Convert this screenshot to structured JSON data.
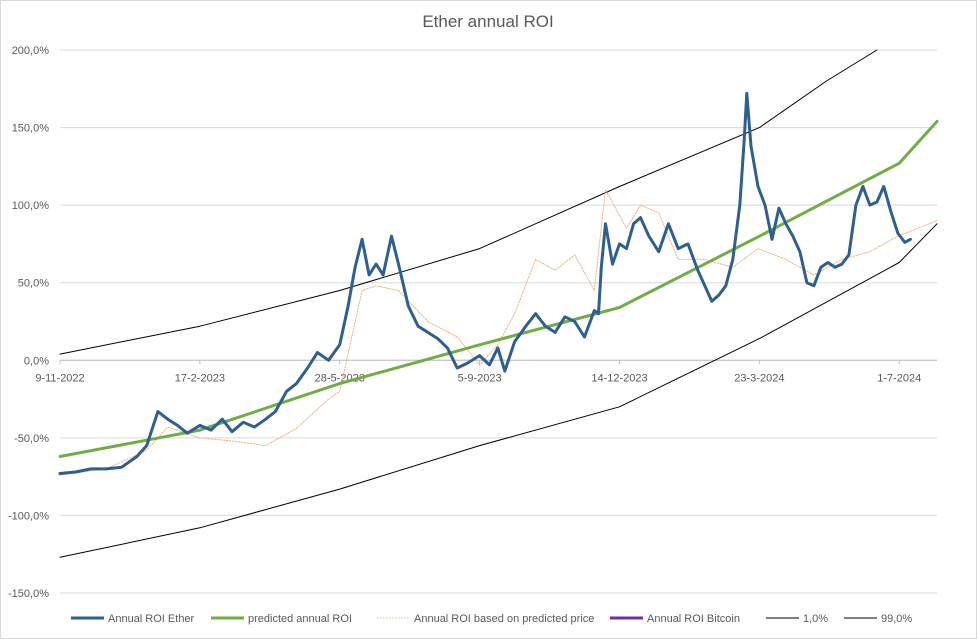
{
  "chart_data": {
    "type": "line",
    "title": "Ether annual ROI",
    "xlabel": "",
    "ylabel": "",
    "ylim": [
      -150,
      200
    ],
    "yticks": [
      "200,0%",
      "150,0%",
      "100,0%",
      "50,0%",
      "0,0%",
      "-50,0%",
      "-100,0%",
      "-150,0%"
    ],
    "ytick_values": [
      200,
      150,
      100,
      50,
      0,
      -50,
      -100,
      -150
    ],
    "x_range": [
      "2022-11-09",
      "2024-07-28"
    ],
    "xticks": [
      {
        "label": "9-11-2022",
        "date": "2022-11-09"
      },
      {
        "label": "17-2-2023",
        "date": "2023-02-17"
      },
      {
        "label": "28-5-2023",
        "date": "2023-05-28"
      },
      {
        "label": "5-9-2023",
        "date": "2023-09-05"
      },
      {
        "label": "14-12-2023",
        "date": "2023-12-14"
      },
      {
        "label": "23-3-2024",
        "date": "2024-03-23"
      },
      {
        "label": "1-7-2024",
        "date": "2024-07-01"
      }
    ],
    "grid": true,
    "legend_position": "bottom",
    "series": [
      {
        "name": "Annual ROI Ether",
        "color": "#2e5f8e",
        "points": [
          [
            "2022-11-09",
            -73
          ],
          [
            "2022-11-20",
            -72
          ],
          [
            "2022-12-01",
            -70
          ],
          [
            "2022-12-12",
            -70
          ],
          [
            "2022-12-23",
            -69
          ],
          [
            "2023-01-03",
            -62
          ],
          [
            "2023-01-10",
            -55
          ],
          [
            "2023-01-18",
            -33
          ],
          [
            "2023-01-25",
            -38
          ],
          [
            "2023-02-01",
            -42
          ],
          [
            "2023-02-08",
            -47
          ],
          [
            "2023-02-17",
            -42
          ],
          [
            "2023-02-25",
            -45
          ],
          [
            "2023-03-05",
            -38
          ],
          [
            "2023-03-12",
            -46
          ],
          [
            "2023-03-20",
            -40
          ],
          [
            "2023-03-28",
            -43
          ],
          [
            "2023-04-05",
            -38
          ],
          [
            "2023-04-12",
            -33
          ],
          [
            "2023-04-20",
            -20
          ],
          [
            "2023-04-27",
            -15
          ],
          [
            "2023-05-05",
            -5
          ],
          [
            "2023-05-12",
            5
          ],
          [
            "2023-05-20",
            0
          ],
          [
            "2023-05-28",
            10
          ],
          [
            "2023-06-03",
            35
          ],
          [
            "2023-06-08",
            60
          ],
          [
            "2023-06-13",
            78
          ],
          [
            "2023-06-18",
            55
          ],
          [
            "2023-06-23",
            62
          ],
          [
            "2023-06-28",
            55
          ],
          [
            "2023-07-04",
            80
          ],
          [
            "2023-07-09",
            62
          ],
          [
            "2023-07-16",
            35
          ],
          [
            "2023-07-23",
            22
          ],
          [
            "2023-07-30",
            18
          ],
          [
            "2023-08-06",
            14
          ],
          [
            "2023-08-13",
            8
          ],
          [
            "2023-08-20",
            -5
          ],
          [
            "2023-08-27",
            -2
          ],
          [
            "2023-09-05",
            3
          ],
          [
            "2023-09-12",
            -3
          ],
          [
            "2023-09-18",
            8
          ],
          [
            "2023-09-23",
            -7
          ],
          [
            "2023-09-30",
            12
          ],
          [
            "2023-10-08",
            22
          ],
          [
            "2023-10-15",
            30
          ],
          [
            "2023-10-22",
            22
          ],
          [
            "2023-10-29",
            18
          ],
          [
            "2023-11-05",
            28
          ],
          [
            "2023-11-12",
            25
          ],
          [
            "2023-11-19",
            15
          ],
          [
            "2023-11-26",
            32
          ],
          [
            "2023-11-29",
            30
          ],
          [
            "2023-12-01",
            60
          ],
          [
            "2023-12-04",
            88
          ],
          [
            "2023-12-09",
            62
          ],
          [
            "2023-12-14",
            75
          ],
          [
            "2023-12-19",
            72
          ],
          [
            "2023-12-24",
            88
          ],
          [
            "2023-12-29",
            92
          ],
          [
            "2024-01-04",
            80
          ],
          [
            "2024-01-11",
            70
          ],
          [
            "2024-01-18",
            88
          ],
          [
            "2024-01-25",
            72
          ],
          [
            "2024-02-01",
            75
          ],
          [
            "2024-02-08",
            58
          ],
          [
            "2024-02-13",
            48
          ],
          [
            "2024-02-18",
            38
          ],
          [
            "2024-02-23",
            42
          ],
          [
            "2024-02-28",
            48
          ],
          [
            "2024-03-04",
            65
          ],
          [
            "2024-03-09",
            100
          ],
          [
            "2024-03-12",
            140
          ],
          [
            "2024-03-14",
            172
          ],
          [
            "2024-03-17",
            138
          ],
          [
            "2024-03-22",
            112
          ],
          [
            "2024-03-27",
            100
          ],
          [
            "2024-04-01",
            78
          ],
          [
            "2024-04-06",
            98
          ],
          [
            "2024-04-11",
            88
          ],
          [
            "2024-04-16",
            80
          ],
          [
            "2024-04-21",
            70
          ],
          [
            "2024-04-26",
            50
          ],
          [
            "2024-05-01",
            48
          ],
          [
            "2024-05-06",
            60
          ],
          [
            "2024-05-11",
            63
          ],
          [
            "2024-05-16",
            60
          ],
          [
            "2024-05-21",
            62
          ],
          [
            "2024-05-26",
            68
          ],
          [
            "2024-05-31",
            100
          ],
          [
            "2024-06-05",
            112
          ],
          [
            "2024-06-10",
            100
          ],
          [
            "2024-06-15",
            102
          ],
          [
            "2024-06-20",
            112
          ],
          [
            "2024-06-25",
            96
          ],
          [
            "2024-06-30",
            82
          ],
          [
            "2024-07-05",
            76
          ],
          [
            "2024-07-09",
            78
          ]
        ]
      },
      {
        "name": "predicted  annual ROI",
        "color": "#70ad47",
        "points": [
          [
            "2022-11-09",
            -62
          ],
          [
            "2023-02-17",
            -45
          ],
          [
            "2023-05-28",
            -15
          ],
          [
            "2023-09-05",
            10
          ],
          [
            "2023-12-14",
            34
          ],
          [
            "2024-03-23",
            80
          ],
          [
            "2024-07-01",
            127
          ],
          [
            "2024-07-28",
            154
          ]
        ]
      },
      {
        "name": "Annual ROI based on predicted price",
        "color": "#f4b183",
        "points": [
          [
            "2022-11-09",
            -74
          ],
          [
            "2022-12-12",
            -70
          ],
          [
            "2023-01-10",
            -58
          ],
          [
            "2023-01-25",
            -43
          ],
          [
            "2023-02-17",
            -50
          ],
          [
            "2023-03-12",
            -52
          ],
          [
            "2023-04-05",
            -55
          ],
          [
            "2023-04-27",
            -44
          ],
          [
            "2023-05-20",
            -25
          ],
          [
            "2023-05-28",
            -20
          ],
          [
            "2023-06-13",
            45
          ],
          [
            "2023-06-23",
            48
          ],
          [
            "2023-07-09",
            45
          ],
          [
            "2023-07-30",
            25
          ],
          [
            "2023-08-20",
            15
          ],
          [
            "2023-09-05",
            -3
          ],
          [
            "2023-09-18",
            10
          ],
          [
            "2023-09-30",
            30
          ],
          [
            "2023-10-15",
            65
          ],
          [
            "2023-10-29",
            58
          ],
          [
            "2023-11-12",
            68
          ],
          [
            "2023-11-26",
            45
          ],
          [
            "2023-12-04",
            110
          ],
          [
            "2023-12-19",
            85
          ],
          [
            "2023-12-29",
            100
          ],
          [
            "2024-01-11",
            95
          ],
          [
            "2024-01-25",
            65
          ],
          [
            "2024-02-13",
            65
          ],
          [
            "2024-03-04",
            60
          ],
          [
            "2024-03-22",
            72
          ],
          [
            "2024-04-11",
            65
          ],
          [
            "2024-05-01",
            55
          ],
          [
            "2024-05-21",
            65
          ],
          [
            "2024-06-10",
            70
          ],
          [
            "2024-06-30",
            80
          ],
          [
            "2024-07-28",
            90
          ]
        ]
      },
      {
        "name": "Annual ROI Bitcoin",
        "color": "#7030a0",
        "points": []
      },
      {
        "name": "1,0%",
        "color": "#000000",
        "points": [
          [
            "2022-11-09",
            -127
          ],
          [
            "2023-02-17",
            -108
          ],
          [
            "2023-05-28",
            -83
          ],
          [
            "2023-09-05",
            -55
          ],
          [
            "2023-12-14",
            -30
          ],
          [
            "2024-03-23",
            14
          ],
          [
            "2024-07-01",
            63
          ],
          [
            "2024-07-28",
            88
          ]
        ]
      },
      {
        "name": "99,0%",
        "color": "#000000",
        "points": [
          [
            "2022-11-09",
            4
          ],
          [
            "2023-02-17",
            22
          ],
          [
            "2023-05-28",
            45
          ],
          [
            "2023-09-05",
            72
          ],
          [
            "2023-12-14",
            112
          ],
          [
            "2024-03-23",
            150
          ],
          [
            "2024-05-10",
            180
          ],
          [
            "2024-06-15",
            200
          ]
        ]
      }
    ]
  }
}
